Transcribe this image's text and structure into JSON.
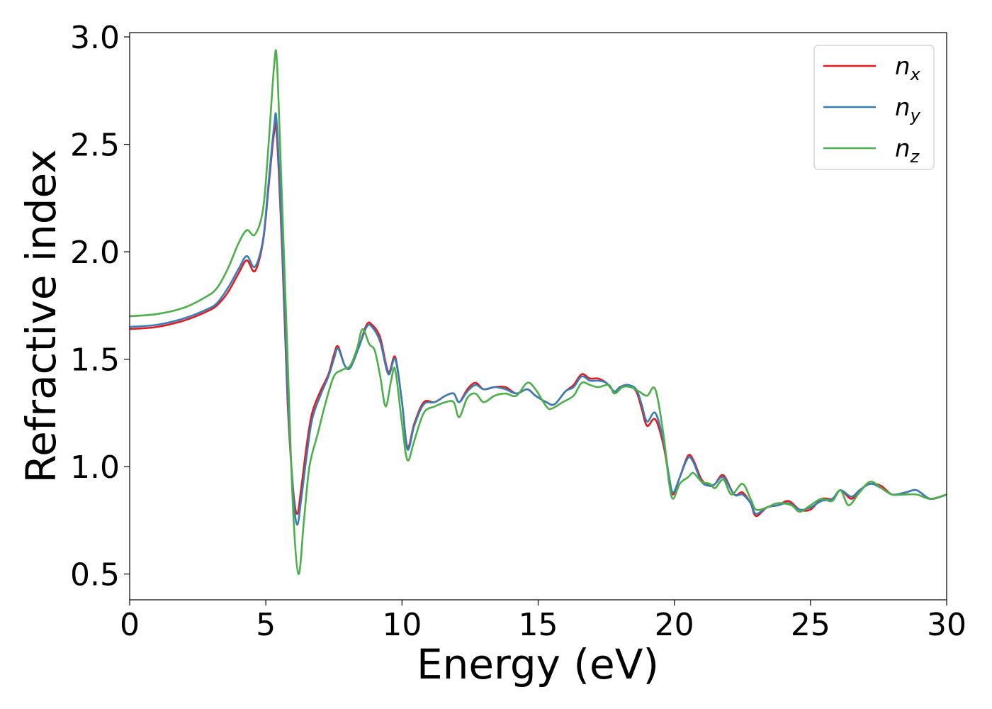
{
  "chart_data": {
    "type": "line",
    "xlabel": "Energy (eV)",
    "ylabel": "Refractive index",
    "xlim": [
      0,
      30
    ],
    "ylim": [
      0.38,
      3.02
    ],
    "xticks": [
      0,
      5,
      10,
      15,
      20,
      25,
      30
    ],
    "xtick_labels": [
      "0",
      "5",
      "10",
      "15",
      "20",
      "25",
      "30"
    ],
    "yticks": [
      0.5,
      1.0,
      1.5,
      2.0,
      2.5,
      3.0
    ],
    "ytick_labels": [
      "0.5",
      "1.0",
      "1.5",
      "2.0",
      "2.5",
      "3.0"
    ],
    "grid": false,
    "legend_position": "top-right",
    "series": [
      {
        "name": "n",
        "subscript": "x",
        "color": "#e41a1c",
        "points": [
          [
            0,
            1.64
          ],
          [
            1,
            1.65
          ],
          [
            2,
            1.68
          ],
          [
            2.8,
            1.72
          ],
          [
            3.2,
            1.75
          ],
          [
            3.6,
            1.81
          ],
          [
            4.0,
            1.9
          ],
          [
            4.3,
            1.96
          ],
          [
            4.6,
            1.91
          ],
          [
            4.9,
            2.05
          ],
          [
            5.1,
            2.3
          ],
          [
            5.3,
            2.55
          ],
          [
            5.4,
            2.55
          ],
          [
            5.6,
            2.0
          ],
          [
            5.8,
            1.3
          ],
          [
            6.0,
            0.9
          ],
          [
            6.15,
            0.78
          ],
          [
            6.3,
            0.9
          ],
          [
            6.5,
            1.1
          ],
          [
            6.7,
            1.25
          ],
          [
            7.0,
            1.35
          ],
          [
            7.3,
            1.43
          ],
          [
            7.5,
            1.52
          ],
          [
            7.65,
            1.56
          ],
          [
            7.9,
            1.47
          ],
          [
            8.1,
            1.46
          ],
          [
            8.4,
            1.55
          ],
          [
            8.7,
            1.66
          ],
          [
            8.9,
            1.66
          ],
          [
            9.2,
            1.6
          ],
          [
            9.5,
            1.44
          ],
          [
            9.75,
            1.51
          ],
          [
            10.0,
            1.3
          ],
          [
            10.2,
            1.09
          ],
          [
            10.45,
            1.2
          ],
          [
            10.8,
            1.3
          ],
          [
            11.2,
            1.3
          ],
          [
            11.6,
            1.33
          ],
          [
            11.9,
            1.34
          ],
          [
            12.1,
            1.3
          ],
          [
            12.4,
            1.36
          ],
          [
            12.7,
            1.39
          ],
          [
            13.0,
            1.36
          ],
          [
            13.4,
            1.37
          ],
          [
            13.8,
            1.37
          ],
          [
            14.2,
            1.34
          ],
          [
            14.6,
            1.36
          ],
          [
            14.9,
            1.33
          ],
          [
            15.3,
            1.3
          ],
          [
            15.6,
            1.29
          ],
          [
            16.0,
            1.35
          ],
          [
            16.3,
            1.38
          ],
          [
            16.6,
            1.43
          ],
          [
            16.9,
            1.41
          ],
          [
            17.2,
            1.41
          ],
          [
            17.5,
            1.39
          ],
          [
            17.8,
            1.35
          ],
          [
            18.0,
            1.37
          ],
          [
            18.3,
            1.38
          ],
          [
            18.6,
            1.35
          ],
          [
            18.8,
            1.27
          ],
          [
            19.0,
            1.19
          ],
          [
            19.3,
            1.22
          ],
          [
            19.6,
            1.1
          ],
          [
            19.8,
            0.95
          ],
          [
            19.95,
            0.87
          ],
          [
            20.2,
            0.95
          ],
          [
            20.5,
            1.05
          ],
          [
            20.7,
            1.03
          ],
          [
            21.0,
            0.94
          ],
          [
            21.3,
            0.91
          ],
          [
            21.5,
            0.92
          ],
          [
            21.8,
            0.96
          ],
          [
            22.2,
            0.87
          ],
          [
            22.5,
            0.88
          ],
          [
            22.8,
            0.83
          ],
          [
            23.0,
            0.77
          ],
          [
            23.4,
            0.81
          ],
          [
            23.8,
            0.82
          ],
          [
            24.2,
            0.84
          ],
          [
            24.6,
            0.8
          ],
          [
            25.0,
            0.8
          ],
          [
            25.4,
            0.85
          ],
          [
            25.8,
            0.85
          ],
          [
            26.1,
            0.89
          ],
          [
            26.5,
            0.85
          ],
          [
            26.8,
            0.89
          ],
          [
            27.2,
            0.92
          ],
          [
            27.6,
            0.91
          ],
          [
            28.0,
            0.87
          ],
          [
            28.5,
            0.88
          ],
          [
            28.9,
            0.89
          ],
          [
            29.4,
            0.85
          ],
          [
            30.0,
            0.87
          ]
        ]
      },
      {
        "name": "n",
        "subscript": "y",
        "color": "#377eb8",
        "points": [
          [
            0,
            1.65
          ],
          [
            1,
            1.66
          ],
          [
            2,
            1.69
          ],
          [
            2.8,
            1.73
          ],
          [
            3.2,
            1.76
          ],
          [
            3.6,
            1.83
          ],
          [
            4.0,
            1.92
          ],
          [
            4.3,
            1.98
          ],
          [
            4.6,
            1.93
          ],
          [
            4.9,
            2.06
          ],
          [
            5.1,
            2.32
          ],
          [
            5.3,
            2.58
          ],
          [
            5.4,
            2.6
          ],
          [
            5.6,
            2.05
          ],
          [
            5.8,
            1.35
          ],
          [
            6.0,
            0.88
          ],
          [
            6.15,
            0.73
          ],
          [
            6.3,
            0.85
          ],
          [
            6.5,
            1.05
          ],
          [
            6.7,
            1.22
          ],
          [
            7.0,
            1.33
          ],
          [
            7.3,
            1.42
          ],
          [
            7.5,
            1.5
          ],
          [
            7.65,
            1.55
          ],
          [
            7.9,
            1.47
          ],
          [
            8.1,
            1.46
          ],
          [
            8.4,
            1.55
          ],
          [
            8.7,
            1.65
          ],
          [
            8.9,
            1.65
          ],
          [
            9.2,
            1.58
          ],
          [
            9.5,
            1.43
          ],
          [
            9.75,
            1.5
          ],
          [
            10.0,
            1.3
          ],
          [
            10.2,
            1.08
          ],
          [
            10.45,
            1.19
          ],
          [
            10.8,
            1.29
          ],
          [
            11.2,
            1.3
          ],
          [
            11.6,
            1.33
          ],
          [
            11.9,
            1.34
          ],
          [
            12.1,
            1.3
          ],
          [
            12.4,
            1.35
          ],
          [
            12.7,
            1.38
          ],
          [
            13.0,
            1.36
          ],
          [
            13.4,
            1.37
          ],
          [
            13.8,
            1.36
          ],
          [
            14.2,
            1.34
          ],
          [
            14.6,
            1.36
          ],
          [
            14.9,
            1.33
          ],
          [
            15.3,
            1.3
          ],
          [
            15.6,
            1.29
          ],
          [
            16.0,
            1.35
          ],
          [
            16.3,
            1.37
          ],
          [
            16.6,
            1.42
          ],
          [
            16.9,
            1.4
          ],
          [
            17.2,
            1.4
          ],
          [
            17.5,
            1.39
          ],
          [
            17.8,
            1.35
          ],
          [
            18.0,
            1.37
          ],
          [
            18.3,
            1.38
          ],
          [
            18.6,
            1.36
          ],
          [
            18.8,
            1.29
          ],
          [
            19.0,
            1.21
          ],
          [
            19.3,
            1.25
          ],
          [
            19.6,
            1.12
          ],
          [
            19.8,
            0.96
          ],
          [
            19.95,
            0.88
          ],
          [
            20.2,
            0.95
          ],
          [
            20.5,
            1.04
          ],
          [
            20.7,
            1.02
          ],
          [
            21.0,
            0.93
          ],
          [
            21.3,
            0.91
          ],
          [
            21.5,
            0.92
          ],
          [
            21.8,
            0.95
          ],
          [
            22.2,
            0.87
          ],
          [
            22.5,
            0.87
          ],
          [
            22.8,
            0.83
          ],
          [
            23.0,
            0.78
          ],
          [
            23.4,
            0.81
          ],
          [
            23.8,
            0.82
          ],
          [
            24.2,
            0.83
          ],
          [
            24.6,
            0.8
          ],
          [
            25.0,
            0.81
          ],
          [
            25.4,
            0.84
          ],
          [
            25.8,
            0.85
          ],
          [
            26.1,
            0.89
          ],
          [
            26.5,
            0.86
          ],
          [
            26.8,
            0.89
          ],
          [
            27.2,
            0.92
          ],
          [
            27.6,
            0.9
          ],
          [
            28.0,
            0.87
          ],
          [
            28.5,
            0.88
          ],
          [
            28.9,
            0.89
          ],
          [
            29.4,
            0.85
          ],
          [
            30.0,
            0.87
          ]
        ]
      },
      {
        "name": "n",
        "subscript": "z",
        "color": "#4daf4a",
        "points": [
          [
            0,
            1.7
          ],
          [
            1,
            1.71
          ],
          [
            2,
            1.74
          ],
          [
            2.8,
            1.79
          ],
          [
            3.2,
            1.83
          ],
          [
            3.6,
            1.92
          ],
          [
            4.0,
            2.04
          ],
          [
            4.3,
            2.1
          ],
          [
            4.6,
            2.08
          ],
          [
            4.9,
            2.2
          ],
          [
            5.1,
            2.5
          ],
          [
            5.3,
            2.86
          ],
          [
            5.4,
            2.9
          ],
          [
            5.55,
            2.4
          ],
          [
            5.8,
            1.5
          ],
          [
            6.0,
            0.8
          ],
          [
            6.2,
            0.5
          ],
          [
            6.4,
            0.75
          ],
          [
            6.6,
            1.0
          ],
          [
            6.9,
            1.15
          ],
          [
            7.2,
            1.3
          ],
          [
            7.5,
            1.42
          ],
          [
            7.8,
            1.45
          ],
          [
            8.1,
            1.47
          ],
          [
            8.35,
            1.55
          ],
          [
            8.55,
            1.64
          ],
          [
            8.8,
            1.57
          ],
          [
            9.0,
            1.54
          ],
          [
            9.2,
            1.42
          ],
          [
            9.4,
            1.28
          ],
          [
            9.6,
            1.4
          ],
          [
            9.75,
            1.45
          ],
          [
            10.0,
            1.2
          ],
          [
            10.2,
            1.03
          ],
          [
            10.45,
            1.12
          ],
          [
            10.8,
            1.25
          ],
          [
            11.2,
            1.28
          ],
          [
            11.6,
            1.3
          ],
          [
            11.9,
            1.3
          ],
          [
            12.1,
            1.23
          ],
          [
            12.4,
            1.32
          ],
          [
            12.7,
            1.34
          ],
          [
            13.0,
            1.3
          ],
          [
            13.4,
            1.33
          ],
          [
            13.8,
            1.34
          ],
          [
            14.2,
            1.33
          ],
          [
            14.6,
            1.39
          ],
          [
            14.9,
            1.36
          ],
          [
            15.3,
            1.28
          ],
          [
            15.5,
            1.27
          ],
          [
            15.9,
            1.3
          ],
          [
            16.3,
            1.33
          ],
          [
            16.6,
            1.39
          ],
          [
            16.9,
            1.38
          ],
          [
            17.2,
            1.37
          ],
          [
            17.6,
            1.38
          ],
          [
            17.8,
            1.34
          ],
          [
            18.1,
            1.37
          ],
          [
            18.4,
            1.37
          ],
          [
            18.7,
            1.35
          ],
          [
            19.0,
            1.33
          ],
          [
            19.3,
            1.36
          ],
          [
            19.6,
            1.15
          ],
          [
            19.8,
            0.93
          ],
          [
            19.95,
            0.85
          ],
          [
            20.2,
            0.92
          ],
          [
            20.5,
            0.95
          ],
          [
            20.7,
            0.97
          ],
          [
            21.0,
            0.93
          ],
          [
            21.3,
            0.92
          ],
          [
            21.5,
            0.9
          ],
          [
            21.8,
            0.94
          ],
          [
            22.1,
            0.87
          ],
          [
            22.5,
            0.92
          ],
          [
            22.8,
            0.85
          ],
          [
            23.0,
            0.8
          ],
          [
            23.4,
            0.81
          ],
          [
            23.8,
            0.83
          ],
          [
            24.3,
            0.82
          ],
          [
            24.6,
            0.79
          ],
          [
            25.0,
            0.82
          ],
          [
            25.4,
            0.85
          ],
          [
            25.8,
            0.84
          ],
          [
            26.1,
            0.89
          ],
          [
            26.4,
            0.82
          ],
          [
            26.8,
            0.88
          ],
          [
            27.2,
            0.93
          ],
          [
            27.6,
            0.9
          ],
          [
            28.0,
            0.87
          ],
          [
            28.4,
            0.87
          ],
          [
            28.9,
            0.87
          ],
          [
            29.4,
            0.85
          ],
          [
            30.0,
            0.87
          ]
        ]
      }
    ]
  }
}
